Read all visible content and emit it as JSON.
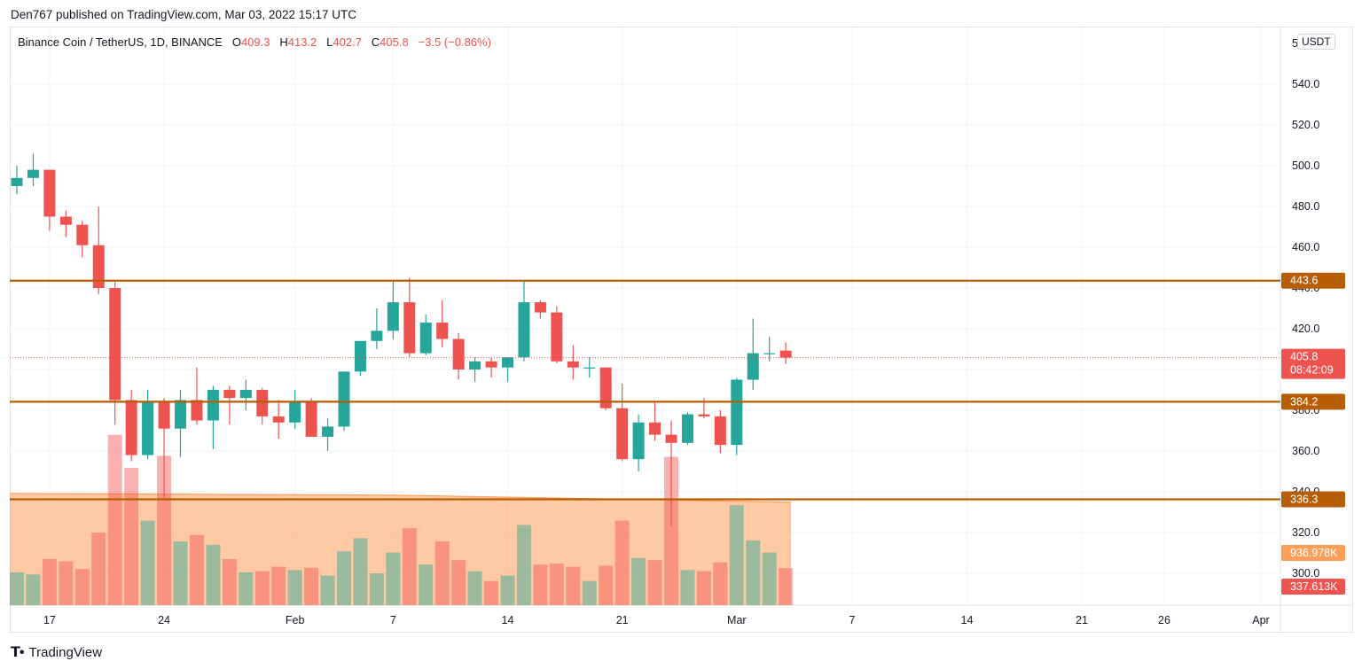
{
  "header": {
    "published": "Den767 published on TradingView.com, Mar 03, 2022 15:17 UTC"
  },
  "legend": {
    "symbol": "Binance Coin / TetherUS, 1D, BINANCE",
    "o_label": "O",
    "o_value": "409.3",
    "h_label": "H",
    "h_value": "413.2",
    "l_label": "L",
    "l_value": "402.7",
    "c_label": "C",
    "c_value": "405.8",
    "change": "−3.5 (−0.86%)"
  },
  "unit_badge": "USDT",
  "footer": {
    "brand": "TradingView"
  },
  "colors": {
    "up": "#26a69a",
    "down": "#ef5350",
    "level": "#b65d06",
    "volume_ma": "#ff9e58"
  },
  "price_tags": {
    "last_price": "405.8",
    "countdown": "08:42:09",
    "volume_ma": "936.978K",
    "volume": "337.613K"
  },
  "chart_data": {
    "type": "candlestick",
    "symbol": "BNBUSDT",
    "ylim": [
      286,
      550
    ],
    "y_ticks": [
      "300.0",
      "320.0",
      "340.0",
      "360.0",
      "380.0",
      "400.0",
      "420.0",
      "440.0",
      "460.0",
      "480.0",
      "500.0",
      "520.0",
      "540.0"
    ],
    "x_ticks": [
      "17",
      "24",
      "Feb",
      "7",
      "14",
      "21",
      "Mar",
      "7",
      "14",
      "21",
      "26",
      "Apr"
    ],
    "levels": [
      "443.6",
      "384.2",
      "336.3"
    ],
    "last_price": 405.8,
    "candles": [
      {
        "date": "Jan 15",
        "o": 490,
        "h": 500,
        "l": 486,
        "c": 494,
        "v": 0.3
      },
      {
        "date": "Jan 16",
        "o": 494,
        "h": 506,
        "l": 490,
        "c": 498,
        "v": 0.28
      },
      {
        "date": "Jan 17",
        "o": 498,
        "h": 498,
        "l": 468,
        "c": 475,
        "v": 0.42
      },
      {
        "date": "Jan 18",
        "o": 475,
        "h": 478,
        "l": 465,
        "c": 471,
        "v": 0.4
      },
      {
        "date": "Jan 19",
        "o": 471,
        "h": 473,
        "l": 455,
        "c": 461,
        "v": 0.33
      },
      {
        "date": "Jan 20",
        "o": 461,
        "h": 480,
        "l": 437,
        "c": 440,
        "v": 0.66
      },
      {
        "date": "Jan 21",
        "o": 440,
        "h": 443,
        "l": 373,
        "c": 385,
        "v": 1.55
      },
      {
        "date": "Jan 22",
        "o": 385,
        "h": 390,
        "l": 355,
        "c": 358,
        "v": 1.25
      },
      {
        "date": "Jan 23",
        "o": 358,
        "h": 390,
        "l": 356,
        "c": 384,
        "v": 0.77
      },
      {
        "date": "Jan 24",
        "o": 384,
        "h": 386,
        "l": 337,
        "c": 371,
        "v": 1.36
      },
      {
        "date": "Jan 25",
        "o": 371,
        "h": 390,
        "l": 357,
        "c": 385,
        "v": 0.58
      },
      {
        "date": "Jan 26",
        "o": 385,
        "h": 401,
        "l": 373,
        "c": 375,
        "v": 0.64
      },
      {
        "date": "Jan 27",
        "o": 375,
        "h": 392,
        "l": 361,
        "c": 390,
        "v": 0.55
      },
      {
        "date": "Jan 28",
        "o": 390,
        "h": 392,
        "l": 373,
        "c": 386,
        "v": 0.42
      },
      {
        "date": "Jan 29",
        "o": 386,
        "h": 395,
        "l": 380,
        "c": 390,
        "v": 0.3
      },
      {
        "date": "Jan 30",
        "o": 390,
        "h": 391,
        "l": 373,
        "c": 377,
        "v": 0.31
      },
      {
        "date": "Jan 31",
        "o": 377,
        "h": 385,
        "l": 366,
        "c": 374,
        "v": 0.35
      },
      {
        "date": "Feb 1",
        "o": 374,
        "h": 390,
        "l": 371,
        "c": 384,
        "v": 0.32
      },
      {
        "date": "Feb 2",
        "o": 384,
        "h": 386,
        "l": 367,
        "c": 367,
        "v": 0.34
      },
      {
        "date": "Feb 3",
        "o": 367,
        "h": 376,
        "l": 360,
        "c": 372,
        "v": 0.27
      },
      {
        "date": "Feb 4",
        "o": 372,
        "h": 399,
        "l": 370,
        "c": 399,
        "v": 0.49
      },
      {
        "date": "Feb 5",
        "o": 399,
        "h": 413,
        "l": 397,
        "c": 414,
        "v": 0.61
      },
      {
        "date": "Feb 6",
        "o": 414,
        "h": 430,
        "l": 410,
        "c": 419,
        "v": 0.29
      },
      {
        "date": "Feb 7",
        "o": 419,
        "h": 443,
        "l": 415,
        "c": 433,
        "v": 0.48
      },
      {
        "date": "Feb 8",
        "o": 433,
        "h": 445,
        "l": 406,
        "c": 408,
        "v": 0.7
      },
      {
        "date": "Feb 9",
        "o": 408,
        "h": 427,
        "l": 407,
        "c": 423,
        "v": 0.37
      },
      {
        "date": "Feb 10",
        "o": 423,
        "h": 434,
        "l": 411,
        "c": 415,
        "v": 0.58
      },
      {
        "date": "Feb 11",
        "o": 415,
        "h": 418,
        "l": 395,
        "c": 400,
        "v": 0.41
      },
      {
        "date": "Feb 12",
        "o": 400,
        "h": 406,
        "l": 394,
        "c": 404,
        "v": 0.31
      },
      {
        "date": "Feb 13",
        "o": 404,
        "h": 406,
        "l": 396,
        "c": 401,
        "v": 0.22
      },
      {
        "date": "Feb 14",
        "o": 401,
        "h": 406,
        "l": 394,
        "c": 406,
        "v": 0.27
      },
      {
        "date": "Feb 15",
        "o": 406,
        "h": 444,
        "l": 404,
        "c": 433,
        "v": 0.73
      },
      {
        "date": "Feb 16",
        "o": 433,
        "h": 434,
        "l": 425,
        "c": 428,
        "v": 0.37
      },
      {
        "date": "Feb 17",
        "o": 428,
        "h": 431,
        "l": 403,
        "c": 404,
        "v": 0.38
      },
      {
        "date": "Feb 18",
        "o": 404,
        "h": 412,
        "l": 395,
        "c": 401,
        "v": 0.35
      },
      {
        "date": "Feb 19",
        "o": 401,
        "h": 406,
        "l": 396,
        "c": 401,
        "v": 0.22
      },
      {
        "date": "Feb 20",
        "o": 401,
        "h": 401,
        "l": 380,
        "c": 381,
        "v": 0.36
      },
      {
        "date": "Feb 21",
        "o": 381,
        "h": 393,
        "l": 355,
        "c": 356,
        "v": 0.77
      },
      {
        "date": "Feb 22",
        "o": 356,
        "h": 378,
        "l": 350,
        "c": 374,
        "v": 0.43
      },
      {
        "date": "Feb 23",
        "o": 374,
        "h": 384,
        "l": 365,
        "c": 368,
        "v": 0.41
      },
      {
        "date": "Feb 24",
        "o": 368,
        "h": 375,
        "l": 323,
        "c": 364,
        "v": 1.35
      },
      {
        "date": "Feb 25",
        "o": 364,
        "h": 379,
        "l": 363,
        "c": 378,
        "v": 0.32
      },
      {
        "date": "Feb 26",
        "o": 378,
        "h": 386,
        "l": 376,
        "c": 377,
        "v": 0.31
      },
      {
        "date": "Feb 27",
        "o": 377,
        "h": 380,
        "l": 359,
        "c": 363,
        "v": 0.39
      },
      {
        "date": "Feb 28",
        "o": 363,
        "h": 396,
        "l": 358,
        "c": 395,
        "v": 0.91
      },
      {
        "date": "Mar 1",
        "o": 395,
        "h": 425,
        "l": 390,
        "c": 408,
        "v": 0.59
      },
      {
        "date": "Mar 2",
        "o": 408,
        "h": 416,
        "l": 404,
        "c": 408,
        "v": 0.48
      },
      {
        "date": "Mar 3",
        "o": 409.3,
        "h": 413.2,
        "l": 402.7,
        "c": 405.8,
        "v": 0.3376
      }
    ],
    "volume_ma": 0.937
  }
}
